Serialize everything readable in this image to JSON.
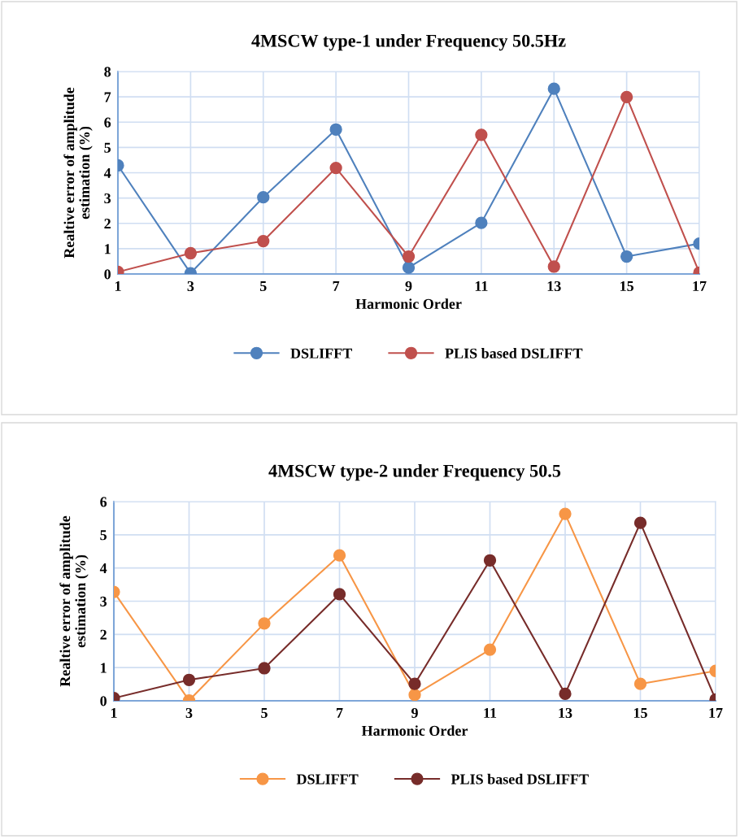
{
  "chart_data": [
    {
      "type": "line",
      "title": "4MSCW type-1 under Frequency 50.5Hz",
      "xlabel": "Harmonic Order",
      "ylabel": "Realtive error of amplitude\nestimation (%)",
      "categories": [
        "1",
        "3",
        "5",
        "7",
        "9",
        "11",
        "13",
        "15",
        "17"
      ],
      "series": [
        {
          "name": "DSLIFFT",
          "color": "#4f81bd",
          "values": [
            4.29,
            0.03,
            3.03,
            5.71,
            0.25,
            2.02,
            7.32,
            0.69,
            1.2
          ]
        },
        {
          "name": "PLIS based DSLIFFT",
          "color": "#c0504d",
          "values": [
            0.08,
            0.82,
            1.3,
            4.19,
            0.69,
            5.5,
            0.29,
            6.99,
            0.05
          ]
        }
      ],
      "ylim": [
        0,
        8
      ],
      "yticks": [
        0,
        1,
        2,
        3,
        4,
        5,
        6,
        7,
        8
      ],
      "grid": true,
      "legend": "bottom",
      "marker": "circle",
      "line_style": "solid"
    },
    {
      "type": "line",
      "title": "4MSCW type-2 under Frequency 50.5",
      "xlabel": "Harmonic Order",
      "ylabel": "Realtive error of amplitude\nestimation (%)",
      "categories": [
        "1",
        "3",
        "5",
        "7",
        "9",
        "11",
        "13",
        "15",
        "17"
      ],
      "series": [
        {
          "name": "DSLIFFT",
          "color": "#f79646",
          "values": [
            3.28,
            0.01,
            2.33,
            4.38,
            0.18,
            1.54,
            5.63,
            0.51,
            0.9
          ]
        },
        {
          "name": "PLIS based DSLIFFT",
          "color": "#772c2a",
          "values": [
            0.08,
            0.63,
            0.98,
            3.21,
            0.51,
            4.23,
            0.21,
            5.36,
            0.04
          ]
        }
      ],
      "ylim": [
        0,
        6
      ],
      "yticks": [
        0,
        1,
        2,
        3,
        4,
        5,
        6
      ],
      "grid": true,
      "legend": "bottom",
      "marker": "circle",
      "line_style": "solid"
    }
  ]
}
